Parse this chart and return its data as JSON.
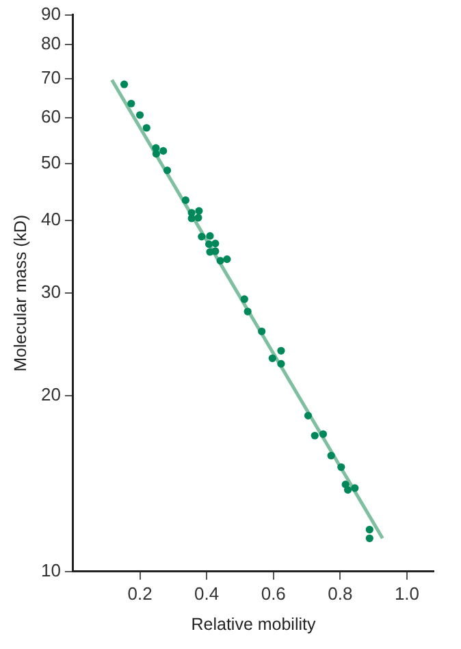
{
  "chart_data": {
    "type": "scatter",
    "xlabel": "Relative mobility",
    "ylabel": "Molecular mass (kD)",
    "log": "y",
    "grid": false,
    "legend": false,
    "marker": "circle",
    "xlim": [
      0,
      1.08
    ],
    "xticks": [
      0.2,
      0.4,
      0.6,
      0.8,
      {
        "value": 1,
        "label": "1.0"
      }
    ],
    "ylim": [
      10,
      90
    ],
    "yticks": [
      10,
      20,
      30,
      40,
      50,
      60,
      70,
      80,
      90
    ],
    "series": [
      {
        "type": "line",
        "marker": "none",
        "color": "#7dbf9f",
        "x": [
          0.116,
          0.927
        ],
        "values": [
          69.6,
          11.4
        ]
      },
      {
        "type": "scatter",
        "color": "#00875a",
        "x": [
          0.153,
          0.174,
          0.2,
          0.22,
          0.248,
          0.249,
          0.27,
          0.282,
          0.337,
          0.355,
          0.377,
          0.355,
          0.375,
          0.385,
          0.41,
          0.407,
          0.426,
          0.41,
          0.426,
          0.441,
          0.461,
          0.513,
          0.523,
          0.565,
          0.597,
          0.623,
          0.623,
          0.704,
          0.724,
          0.749,
          0.773,
          0.803,
          0.816,
          0.823,
          0.844,
          0.888,
          0.888
        ],
        "values": [
          68.4,
          63.4,
          60.6,
          57.6,
          53.2,
          52,
          52.6,
          48.7,
          43.3,
          41.2,
          41.5,
          40.3,
          40.4,
          37.5,
          37.6,
          36.4,
          36.5,
          35.3,
          35.4,
          34.1,
          34.3,
          29.3,
          27.9,
          25.8,
          23.2,
          23.9,
          22.7,
          18.5,
          17.1,
          17.2,
          15.8,
          15.1,
          14.1,
          13.8,
          13.9,
          11.8,
          11.4
        ]
      }
    ]
  }
}
